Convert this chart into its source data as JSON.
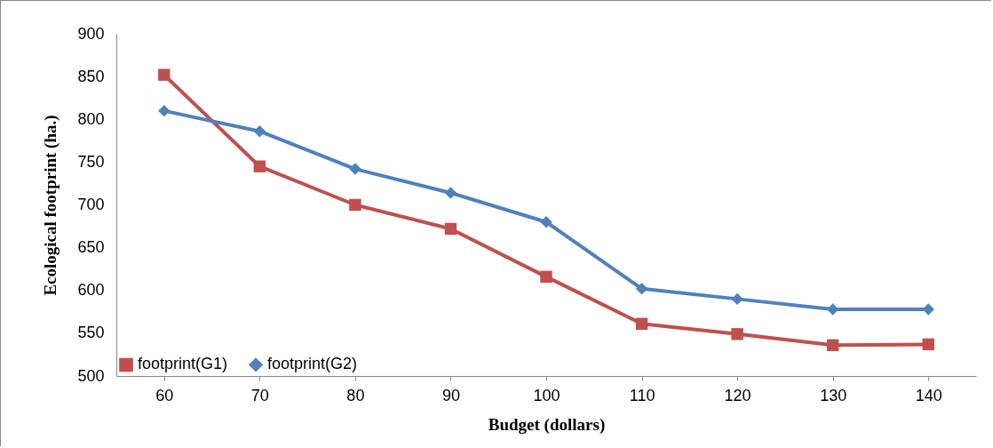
{
  "chart_data": {
    "type": "line",
    "xlabel": "Budget (dollars)",
    "ylabel": "Ecological footprint (ha.)",
    "categories": [
      "60",
      "70",
      "80",
      "90",
      "100",
      "110",
      "120",
      "130",
      "140"
    ],
    "series": [
      {
        "name": "footprint(G1)",
        "color": "#c0504d",
        "marker": "square",
        "values": [
          852,
          745,
          700,
          672,
          616,
          561,
          549,
          536,
          537
        ]
      },
      {
        "name": "footprint(G2)",
        "color": "#4f81bd",
        "marker": "diamond",
        "values": [
          810,
          786,
          742,
          714,
          680,
          602,
          590,
          578,
          578
        ]
      }
    ],
    "ylim": [
      500,
      900
    ],
    "yticks": [
      500,
      550,
      600,
      650,
      700,
      750,
      800,
      850,
      900
    ],
    "grid": false,
    "legend": "bottom left"
  }
}
